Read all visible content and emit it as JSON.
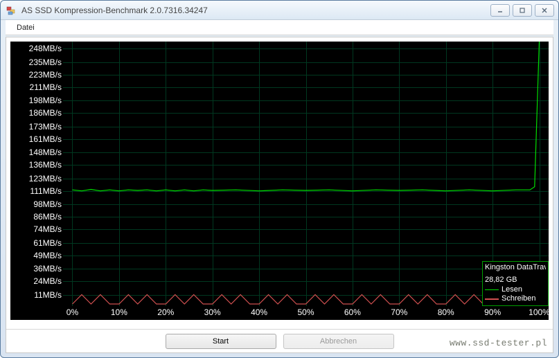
{
  "window": {
    "title": "AS SSD Kompression-Benchmark 2.0.7316.34247"
  },
  "menu": {
    "items": [
      {
        "label": "Datei"
      }
    ]
  },
  "chart": {
    "type": "line",
    "background_color": "#000000",
    "grid_color": "#003820",
    "text_color": "#ffffff",
    "label_fontsize": 12,
    "y_unit": "MB/s",
    "y_ticks": [
      248,
      235,
      223,
      211,
      198,
      186,
      173,
      161,
      148,
      136,
      123,
      111,
      98,
      86,
      74,
      61,
      49,
      36,
      24,
      11
    ],
    "y_min": 0,
    "y_max": 255,
    "x_unit": "%",
    "x_ticks": [
      0,
      10,
      20,
      30,
      40,
      50,
      60,
      70,
      80,
      90,
      100
    ],
    "x_min": -2,
    "x_max": 102,
    "series": [
      {
        "name": "Lesen",
        "color": "#00e000",
        "line_width": 1.2,
        "data": [
          {
            "x": 0,
            "y": 112
          },
          {
            "x": 2,
            "y": 111
          },
          {
            "x": 4,
            "y": 112.5
          },
          {
            "x": 6,
            "y": 111
          },
          {
            "x": 8,
            "y": 112
          },
          {
            "x": 10,
            "y": 111
          },
          {
            "x": 12,
            "y": 112
          },
          {
            "x": 14,
            "y": 111.5
          },
          {
            "x": 16,
            "y": 112
          },
          {
            "x": 18,
            "y": 111
          },
          {
            "x": 20,
            "y": 112
          },
          {
            "x": 22,
            "y": 111
          },
          {
            "x": 24,
            "y": 112
          },
          {
            "x": 26,
            "y": 111
          },
          {
            "x": 28,
            "y": 112
          },
          {
            "x": 30,
            "y": 111.5
          },
          {
            "x": 35,
            "y": 112
          },
          {
            "x": 40,
            "y": 111
          },
          {
            "x": 45,
            "y": 112
          },
          {
            "x": 50,
            "y": 111.5
          },
          {
            "x": 55,
            "y": 112
          },
          {
            "x": 60,
            "y": 111
          },
          {
            "x": 65,
            "y": 112
          },
          {
            "x": 70,
            "y": 111.5
          },
          {
            "x": 75,
            "y": 112
          },
          {
            "x": 80,
            "y": 111
          },
          {
            "x": 85,
            "y": 112
          },
          {
            "x": 90,
            "y": 111
          },
          {
            "x": 95,
            "y": 112
          },
          {
            "x": 98,
            "y": 112
          },
          {
            "x": 99,
            "y": 115
          },
          {
            "x": 100,
            "y": 255
          }
        ]
      },
      {
        "name": "Schreiben",
        "color": "#d05050",
        "line_width": 1.2,
        "data": [
          {
            "x": 0,
            "y": 2
          },
          {
            "x": 2,
            "y": 11
          },
          {
            "x": 4,
            "y": 2
          },
          {
            "x": 6,
            "y": 11
          },
          {
            "x": 8,
            "y": 2
          },
          {
            "x": 10,
            "y": 2
          },
          {
            "x": 12,
            "y": 11
          },
          {
            "x": 14,
            "y": 2
          },
          {
            "x": 16,
            "y": 11
          },
          {
            "x": 18,
            "y": 2
          },
          {
            "x": 20,
            "y": 2
          },
          {
            "x": 22,
            "y": 11
          },
          {
            "x": 24,
            "y": 2
          },
          {
            "x": 26,
            "y": 11
          },
          {
            "x": 28,
            "y": 2
          },
          {
            "x": 30,
            "y": 2
          },
          {
            "x": 32,
            "y": 11
          },
          {
            "x": 34,
            "y": 2
          },
          {
            "x": 36,
            "y": 11
          },
          {
            "x": 38,
            "y": 2
          },
          {
            "x": 40,
            "y": 2
          },
          {
            "x": 42,
            "y": 11
          },
          {
            "x": 44,
            "y": 2
          },
          {
            "x": 46,
            "y": 11
          },
          {
            "x": 48,
            "y": 2
          },
          {
            "x": 50,
            "y": 2
          },
          {
            "x": 52,
            "y": 11
          },
          {
            "x": 54,
            "y": 2
          },
          {
            "x": 56,
            "y": 11
          },
          {
            "x": 58,
            "y": 2
          },
          {
            "x": 60,
            "y": 2
          },
          {
            "x": 62,
            "y": 11
          },
          {
            "x": 64,
            "y": 2
          },
          {
            "x": 66,
            "y": 11
          },
          {
            "x": 68,
            "y": 2
          },
          {
            "x": 70,
            "y": 2
          },
          {
            "x": 72,
            "y": 11
          },
          {
            "x": 74,
            "y": 2
          },
          {
            "x": 76,
            "y": 11
          },
          {
            "x": 78,
            "y": 2
          },
          {
            "x": 80,
            "y": 2
          },
          {
            "x": 82,
            "y": 11
          },
          {
            "x": 84,
            "y": 2
          },
          {
            "x": 86,
            "y": 11
          },
          {
            "x": 88,
            "y": 2
          },
          {
            "x": 90,
            "y": 2
          },
          {
            "x": 92,
            "y": 11
          },
          {
            "x": 94,
            "y": 2
          },
          {
            "x": 96,
            "y": 11
          },
          {
            "x": 98,
            "y": 2
          },
          {
            "x": 100,
            "y": 11
          }
        ]
      }
    ],
    "legend": {
      "border_color": "#00a000",
      "device_name": "Kingston DataTrave",
      "capacity": "28,82 GB",
      "read_label": "Lesen",
      "write_label": "Schreiben",
      "fontsize": 11
    }
  },
  "buttons": {
    "start_label": "Start",
    "cancel_label": "Abbrechen"
  },
  "watermark": "www.ssd-tester.pl"
}
